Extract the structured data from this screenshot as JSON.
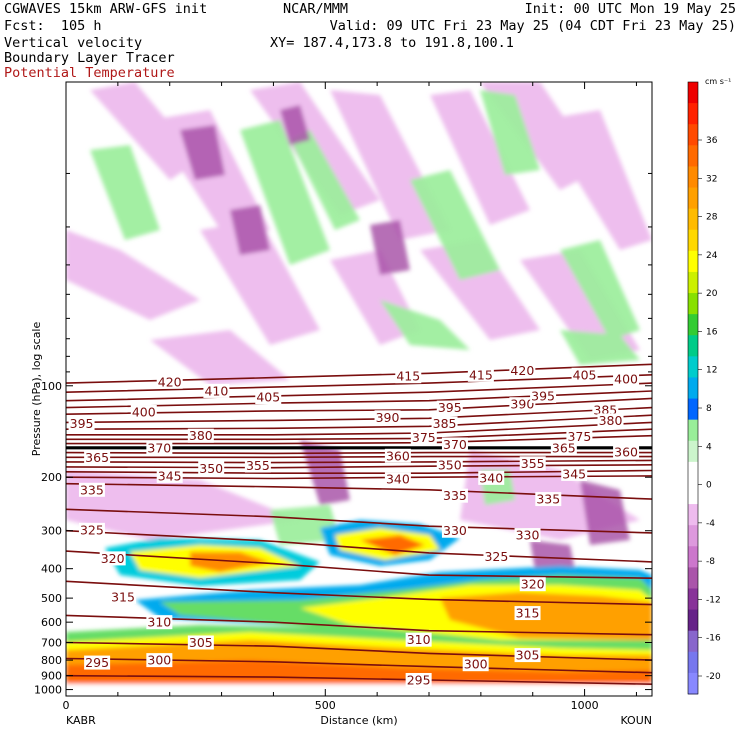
{
  "header": {
    "line1_left": "CGWAVES 15km ARW-GFS init",
    "line1_center": "NCAR/MMM",
    "line1_right": "Init: 00 UTC Mon 19 May 25",
    "line2_left": "Fcst:  105 h",
    "line2_right": "Valid: 09 UTC Fri 23 May 25 (04 CDT Fri 23 May 25)",
    "line3_left": "Vertical velocity",
    "line3_right": "XY= 187.4,173.8 to 191.8,100.1",
    "line4_left": "Boundary Layer Tracer",
    "line5_left": "Potential Temperature"
  },
  "colors": {
    "theta_contour": "#7a0e0e",
    "potential_temperature_label": "#b01818",
    "tropopause_line": "#000000"
  },
  "chart_data": {
    "type": "heatmap",
    "xlabel": "Distance (km)",
    "ylabel": "Pressure (hPa), log scale",
    "x_ticks": [
      0,
      500,
      1000
    ],
    "xlim": [
      0,
      1130
    ],
    "endpoint_left": "KABR",
    "endpoint_right": "KOUN",
    "y_scale": "log",
    "y_ticks": [
      100,
      200,
      300,
      400,
      500,
      600,
      700,
      800,
      900,
      1000
    ],
    "ylim": [
      1050,
      10
    ],
    "colorbar": {
      "unit": "cm s⁻¹",
      "tick_labels": [
        36,
        32,
        28,
        24,
        20,
        16,
        12,
        8,
        4,
        0,
        -4,
        -8,
        -12,
        -16,
        -20
      ],
      "colors": [
        "#ee0000",
        "#ff2200",
        "#ff4a00",
        "#ff6a00",
        "#ff8a00",
        "#ffa000",
        "#ffbb00",
        "#ffd800",
        "#ffff00",
        "#ccf000",
        "#88e000",
        "#33cc33",
        "#00cc88",
        "#00cccc",
        "#00aaee",
        "#0066ff",
        "#99ee99",
        "#ccf5cc",
        "#ffffff",
        "#ffffff",
        "#eebbee",
        "#dd99dd",
        "#cc77cc",
        "#aa55aa",
        "#883399",
        "#662288",
        "#8866cc",
        "#7777ee",
        "#8888ff"
      ]
    },
    "tropopause_level_hPa": 160,
    "theta_contours": [
      {
        "label": "420",
        "points": [
          [
            0,
            98
          ],
          [
            400,
            94
          ],
          [
            700,
            91
          ],
          [
            1130,
            85
          ]
        ]
      },
      {
        "label": "415",
        "points": [
          [
            0,
            105
          ],
          [
            400,
            101
          ],
          [
            700,
            98
          ],
          [
            1130,
            92
          ]
        ]
      },
      {
        "label": "410",
        "points": [
          [
            0,
            112
          ],
          [
            400,
            108
          ],
          [
            700,
            105
          ],
          [
            1130,
            98
          ]
        ]
      },
      {
        "label": "405",
        "points": [
          [
            0,
            118
          ],
          [
            400,
            114
          ],
          [
            700,
            112
          ],
          [
            1130,
            104
          ]
        ]
      },
      {
        "label": "400",
        "points": [
          [
            0,
            124
          ],
          [
            400,
            121
          ],
          [
            700,
            120
          ],
          [
            1130,
            110
          ]
        ]
      },
      {
        "label": "395",
        "points": [
          [
            0,
            132
          ],
          [
            400,
            130
          ],
          [
            700,
            128
          ],
          [
            1130,
            118
          ]
        ]
      },
      {
        "label": "390",
        "points": [
          [
            0,
            139
          ],
          [
            400,
            138
          ],
          [
            700,
            136
          ],
          [
            1130,
            125
          ]
        ]
      },
      {
        "label": "385",
        "points": [
          [
            0,
            145
          ],
          [
            400,
            145
          ],
          [
            700,
            143
          ],
          [
            1130,
            132
          ]
        ]
      },
      {
        "label": "380",
        "points": [
          [
            0,
            150
          ],
          [
            400,
            150
          ],
          [
            700,
            149
          ],
          [
            1130,
            139
          ]
        ]
      },
      {
        "label": "375",
        "points": [
          [
            0,
            155
          ],
          [
            400,
            155
          ],
          [
            700,
            154
          ],
          [
            1130,
            146
          ]
        ]
      },
      {
        "label": "370",
        "points": [
          [
            0,
            160
          ],
          [
            400,
            160
          ],
          [
            700,
            160
          ],
          [
            1130,
            160
          ]
        ]
      },
      {
        "label": "365",
        "points": [
          [
            0,
            166
          ],
          [
            400,
            167
          ],
          [
            700,
            166
          ],
          [
            1130,
            166
          ]
        ]
      },
      {
        "label": "360",
        "points": [
          [
            0,
            172
          ],
          [
            400,
            172
          ],
          [
            700,
            171
          ],
          [
            1130,
            171
          ]
        ]
      },
      {
        "label": "355",
        "points": [
          [
            0,
            178
          ],
          [
            400,
            179
          ],
          [
            700,
            178
          ],
          [
            1130,
            176
          ]
        ]
      },
      {
        "label": "350",
        "points": [
          [
            0,
            185
          ],
          [
            400,
            186
          ],
          [
            700,
            184
          ],
          [
            1130,
            182
          ]
        ]
      },
      {
        "label": "345",
        "points": [
          [
            0,
            192
          ],
          [
            400,
            194
          ],
          [
            700,
            194
          ],
          [
            1130,
            190
          ]
        ]
      },
      {
        "label": "340",
        "points": [
          [
            0,
            200
          ],
          [
            400,
            202
          ],
          [
            700,
            200
          ],
          [
            1130,
            198
          ]
        ]
      },
      {
        "label": "335",
        "points": [
          [
            0,
            210
          ],
          [
            400,
            215
          ],
          [
            700,
            220
          ],
          [
            1130,
            236
          ]
        ]
      },
      {
        "label": "330",
        "points": [
          [
            0,
            255
          ],
          [
            400,
            270
          ],
          [
            700,
            290
          ],
          [
            1130,
            305
          ]
        ]
      },
      {
        "label": "325",
        "points": [
          [
            0,
            300
          ],
          [
            400,
            325
          ],
          [
            700,
            355
          ],
          [
            1130,
            380
          ]
        ]
      },
      {
        "label": "320",
        "points": [
          [
            0,
            350
          ],
          [
            400,
            385
          ],
          [
            700,
            420
          ],
          [
            1130,
            430
          ]
        ]
      },
      {
        "label": "315",
        "points": [
          [
            0,
            440
          ],
          [
            400,
            480
          ],
          [
            700,
            505
          ],
          [
            1130,
            525
          ]
        ]
      },
      {
        "label": "310",
        "points": [
          [
            0,
            570
          ],
          [
            400,
            600
          ],
          [
            700,
            640
          ],
          [
            1130,
            660
          ]
        ]
      },
      {
        "label": "305",
        "points": [
          [
            0,
            700
          ],
          [
            400,
            720
          ],
          [
            700,
            760
          ],
          [
            1130,
            800
          ]
        ]
      },
      {
        "label": "300",
        "points": [
          [
            0,
            790
          ],
          [
            400,
            810
          ],
          [
            700,
            840
          ],
          [
            1130,
            880
          ]
        ]
      },
      {
        "label": "295",
        "points": [
          [
            0,
            900
          ],
          [
            400,
            910
          ],
          [
            700,
            930
          ],
          [
            1130,
            960
          ]
        ]
      }
    ],
    "theta_labels": [
      {
        "text": "420",
        "x": 200,
        "p": 97
      },
      {
        "text": "415",
        "x": 660,
        "p": 93
      },
      {
        "text": "415",
        "x": 800,
        "p": 92
      },
      {
        "text": "420",
        "x": 880,
        "p": 89
      },
      {
        "text": "405",
        "x": 1000,
        "p": 92
      },
      {
        "text": "400",
        "x": 1080,
        "p": 95
      },
      {
        "text": "410",
        "x": 290,
        "p": 104
      },
      {
        "text": "405",
        "x": 390,
        "p": 109
      },
      {
        "text": "400",
        "x": 150,
        "p": 122
      },
      {
        "text": "395",
        "x": 30,
        "p": 133
      },
      {
        "text": "395",
        "x": 740,
        "p": 118
      },
      {
        "text": "390",
        "x": 620,
        "p": 127
      },
      {
        "text": "390",
        "x": 880,
        "p": 115
      },
      {
        "text": "395",
        "x": 920,
        "p": 108
      },
      {
        "text": "385",
        "x": 730,
        "p": 133
      },
      {
        "text": "385",
        "x": 1040,
        "p": 120
      },
      {
        "text": "380",
        "x": 1050,
        "p": 130
      },
      {
        "text": "380",
        "x": 260,
        "p": 146
      },
      {
        "text": "375",
        "x": 690,
        "p": 148
      },
      {
        "text": "375",
        "x": 990,
        "p": 147
      },
      {
        "text": "370",
        "x": 180,
        "p": 160
      },
      {
        "text": "370",
        "x": 750,
        "p": 156
      },
      {
        "text": "365",
        "x": 60,
        "p": 172
      },
      {
        "text": "365",
        "x": 960,
        "p": 160
      },
      {
        "text": "360",
        "x": 640,
        "p": 170
      },
      {
        "text": "360",
        "x": 1080,
        "p": 165
      },
      {
        "text": "355",
        "x": 370,
        "p": 183
      },
      {
        "text": "355",
        "x": 900,
        "p": 180
      },
      {
        "text": "350",
        "x": 280,
        "p": 187
      },
      {
        "text": "350",
        "x": 740,
        "p": 182
      },
      {
        "text": "345",
        "x": 200,
        "p": 198
      },
      {
        "text": "345",
        "x": 980,
        "p": 195
      },
      {
        "text": "340",
        "x": 640,
        "p": 203
      },
      {
        "text": "340",
        "x": 820,
        "p": 201
      },
      {
        "text": "335",
        "x": 50,
        "p": 220
      },
      {
        "text": "335",
        "x": 750,
        "p": 230
      },
      {
        "text": "335",
        "x": 930,
        "p": 236
      },
      {
        "text": "330",
        "x": 750,
        "p": 300
      },
      {
        "text": "330",
        "x": 890,
        "p": 310
      },
      {
        "text": "325",
        "x": 50,
        "p": 298
      },
      {
        "text": "325",
        "x": 830,
        "p": 365
      },
      {
        "text": "320",
        "x": 90,
        "p": 370
      },
      {
        "text": "320",
        "x": 900,
        "p": 450
      },
      {
        "text": "315",
        "x": 110,
        "p": 495
      },
      {
        "text": "315",
        "x": 890,
        "p": 560
      },
      {
        "text": "310",
        "x": 180,
        "p": 600
      },
      {
        "text": "310",
        "x": 680,
        "p": 685
      },
      {
        "text": "305",
        "x": 260,
        "p": 700
      },
      {
        "text": "305",
        "x": 890,
        "p": 770
      },
      {
        "text": "300",
        "x": 180,
        "p": 800
      },
      {
        "text": "300",
        "x": 790,
        "p": 825
      },
      {
        "text": "295",
        "x": 60,
        "p": 815
      },
      {
        "text": "295",
        "x": 680,
        "p": 930
      }
    ]
  }
}
